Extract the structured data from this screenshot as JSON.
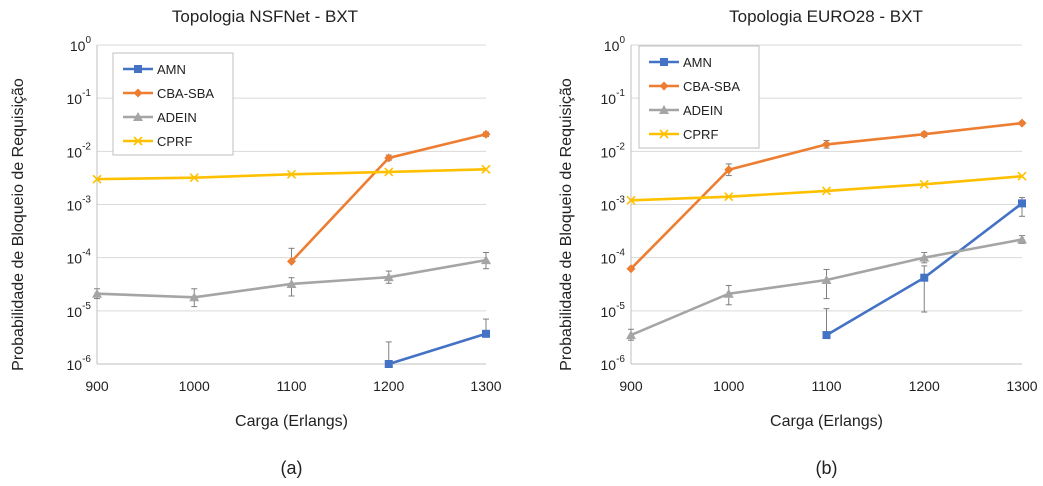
{
  "chart_data": [
    {
      "type": "line",
      "title": "Topologia NSFNet - BXT",
      "subfigure_label": "(a)",
      "xlabel": "Carga (Erlangs)",
      "ylabel": "Probabilidade de Bloqueio de Requisição",
      "yscale": "log",
      "ylim": [
        1e-06,
        1
      ],
      "x": [
        900,
        1000,
        1100,
        1200,
        1300
      ],
      "x_ticks": [
        "900",
        "1000",
        "1100",
        "1200",
        "1300"
      ],
      "y_ticks": [
        {
          "base": "10",
          "exp": "0"
        },
        {
          "base": "10",
          "exp": "-1"
        },
        {
          "base": "10",
          "exp": "-2"
        },
        {
          "base": "10",
          "exp": "-3"
        },
        {
          "base": "10",
          "exp": "-4"
        },
        {
          "base": "10",
          "exp": "-5"
        },
        {
          "base": "10",
          "exp": "-6"
        }
      ],
      "grid": "horizontal",
      "legend": "top-left",
      "series": [
        {
          "name": "AMN",
          "color": "#4472C4",
          "marker": "square",
          "values": [
            null,
            null,
            null,
            1e-06,
            3.7e-06
          ],
          "err_hi": [
            null,
            null,
            null,
            2.6e-06,
            7e-06
          ],
          "err_lo": [
            null,
            null,
            null,
            1e-06,
            3.7e-06
          ]
        },
        {
          "name": "CBA-SBA",
          "color": "#ED7D31",
          "marker": "diamond",
          "values": [
            null,
            null,
            8.5e-05,
            0.0075,
            0.021
          ],
          "err_hi": [
            null,
            null,
            0.00015,
            0.0085,
            0.023
          ],
          "err_lo": [
            null,
            null,
            8.5e-05,
            0.0068,
            0.019
          ]
        },
        {
          "name": "ADEIN",
          "color": "#A5A5A5",
          "marker": "triangle",
          "values": [
            2.1e-05,
            1.8e-05,
            3.2e-05,
            4.3e-05,
            9e-05
          ],
          "err_hi": [
            2.6e-05,
            2.6e-05,
            4.2e-05,
            5.6e-05,
            0.000125
          ],
          "err_lo": [
            1.7e-05,
            1.2e-05,
            1.9e-05,
            3.3e-05,
            6.2e-05
          ]
        },
        {
          "name": "CPRF",
          "color": "#FFC000",
          "marker": "x",
          "values": [
            0.003,
            0.0032,
            0.0037,
            0.0041,
            0.0046
          ]
        }
      ]
    },
    {
      "type": "line",
      "title": "Topologia EURO28 - BXT",
      "subfigure_label": "(b)",
      "xlabel": "Carga (Erlangs)",
      "ylabel": "Probabilidade de Bloqueio de Requisição",
      "yscale": "log",
      "ylim": [
        1e-06,
        1
      ],
      "x": [
        900,
        1000,
        1100,
        1200,
        1300
      ],
      "x_ticks": [
        "900",
        "1000",
        "1100",
        "1200",
        "1300"
      ],
      "y_ticks": [
        {
          "base": "10",
          "exp": "0"
        },
        {
          "base": "10",
          "exp": "-1"
        },
        {
          "base": "10",
          "exp": "-2"
        },
        {
          "base": "10",
          "exp": "-3"
        },
        {
          "base": "10",
          "exp": "-4"
        },
        {
          "base": "10",
          "exp": "-5"
        },
        {
          "base": "10",
          "exp": "-6"
        }
      ],
      "grid": "horizontal",
      "legend": "top-left",
      "series": [
        {
          "name": "AMN",
          "color": "#4472C4",
          "marker": "square",
          "values": [
            null,
            null,
            3.5e-06,
            4.2e-05,
            0.00105
          ],
          "err_hi": [
            null,
            null,
            1.1e-05,
            7e-05,
            0.00135
          ],
          "err_lo": [
            null,
            null,
            3.5e-06,
            9.5e-06,
            0.0006
          ]
        },
        {
          "name": "CBA-SBA",
          "color": "#ED7D31",
          "marker": "diamond",
          "values": [
            6.2e-05,
            0.0045,
            0.0135,
            0.021,
            0.034
          ],
          "err_hi": [
            6.2e-05,
            0.0058,
            0.016,
            0.023,
            0.036
          ],
          "err_lo": [
            6.2e-05,
            0.0035,
            0.0115,
            0.019,
            0.032
          ]
        },
        {
          "name": "ADEIN",
          "color": "#A5A5A5",
          "marker": "triangle",
          "values": [
            3.5e-06,
            2.1e-05,
            3.8e-05,
            0.0001,
            0.00022
          ],
          "err_hi": [
            4.5e-06,
            3e-05,
            6e-05,
            0.000125,
            0.00026
          ],
          "err_lo": [
            2.8e-06,
            1.3e-05,
            1.7e-05,
            8e-05,
            0.000185
          ]
        },
        {
          "name": "CPRF",
          "color": "#FFC000",
          "marker": "x",
          "values": [
            0.0012,
            0.0014,
            0.0018,
            0.0024,
            0.0034
          ]
        }
      ]
    }
  ]
}
